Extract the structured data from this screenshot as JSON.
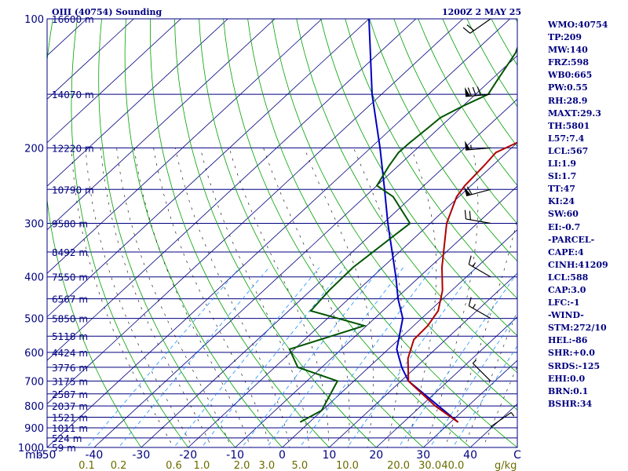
{
  "header": {
    "station": "OIII (40754) Sounding",
    "time": "1200Z  2 MAY 25"
  },
  "stats": [
    "WMO:40754",
    "TP:209",
    "MW:140",
    "FRZ:598",
    "WB0:665",
    "PW:0.55",
    "RH:28.9",
    "MAXT:29.3",
    "TH:5801",
    "L57:7.4",
    "LCL:567",
    "LI:1.9",
    "SI:1.7",
    "TT:47",
    "KI:24",
    "SW:60",
    "EI:-0.7",
    "-PARCEL-",
    "CAPE:4",
    "CINH:41209",
    "LCL:588",
    "CAP:3.0",
    "LFC:-1",
    "-WIND-",
    "STM:272/10",
    "HEL:-86",
    "SHR:+0.0",
    "SRDS:-125",
    "EHI:0.0",
    "BRN:0.1",
    "BSHR:34"
  ],
  "colors": {
    "frame": "#000080",
    "isobar": "#000080",
    "isotherm": "#000080",
    "dry_adiabat": "#00a000",
    "moist_adiabat": "#000000",
    "mixing_ratio": "#1e90ff",
    "temperature": "#b00000",
    "dewpoint": "#005500",
    "parcel": "#0000c0",
    "axis_text": "#000080",
    "mixing_text": "#6b6b00"
  },
  "chart_data": {
    "type": "skew-t log-p",
    "x_unit": "°C",
    "y_unit": "mb",
    "pressure_ticks": [
      100,
      200,
      300,
      400,
      500,
      600,
      700,
      800,
      900,
      1000
    ],
    "pressure_axis_label": "mb",
    "temperature_ticks": [
      -50,
      -40,
      -30,
      -20,
      -10,
      0,
      10,
      20,
      30,
      40,
      50
    ],
    "temperature_tick_labels": [
      "-50",
      "-40",
      "-30",
      "-20",
      "-10",
      "0",
      "10",
      "20",
      "30",
      "40",
      "C"
    ],
    "mixing_ratio_ticks": [
      0.1,
      0.2,
      0.6,
      1.0,
      2.0,
      3.0,
      5.0,
      10.0,
      20.0,
      30.0,
      40.0
    ],
    "mixing_ratio_tick_labels": [
      "0.1",
      "0.2",
      "0.6",
      "1.0",
      "2.0",
      "3.0",
      "5.0",
      "10.0",
      "20.0",
      "30.0",
      "40.0"
    ],
    "mixing_ratio_unit": "g/kg",
    "height_labels": [
      {
        "p": 100,
        "label": "16600 m"
      },
      {
        "p": 150,
        "label": "14070 m"
      },
      {
        "p": 200,
        "label": "12220 m"
      },
      {
        "p": 250,
        "label": "10790 m"
      },
      {
        "p": 300,
        "label": "9580 m"
      },
      {
        "p": 350,
        "label": "8492 m"
      },
      {
        "p": 400,
        "label": "7550 m"
      },
      {
        "p": 450,
        "label": "6567 m"
      },
      {
        "p": 500,
        "label": "5850 m"
      },
      {
        "p": 550,
        "label": "5118 m"
      },
      {
        "p": 600,
        "label": "4424 m"
      },
      {
        "p": 650,
        "label": "3776 m"
      },
      {
        "p": 700,
        "label": "3175 m"
      },
      {
        "p": 750,
        "label": "2587 m"
      },
      {
        "p": 800,
        "label": "2037 m"
      },
      {
        "p": 850,
        "label": "1521 m"
      },
      {
        "p": 900,
        "label": "1011 m"
      },
      {
        "p": 950,
        "label": "524 m"
      },
      {
        "p": 1000,
        "label": "59 m"
      }
    ],
    "temperature_profile": [
      [
        873,
        31.6
      ],
      [
        800,
        23.0
      ],
      [
        700,
        11.6
      ],
      [
        620,
        6.3
      ],
      [
        560,
        3.2
      ],
      [
        520,
        3.0
      ],
      [
        480,
        1.8
      ],
      [
        430,
        -2.0
      ],
      [
        380,
        -7.4
      ],
      [
        300,
        -16.5
      ],
      [
        260,
        -20.5
      ],
      [
        245,
        -21.3
      ],
      [
        220,
        -21.8
      ],
      [
        205,
        -22.3
      ],
      [
        195,
        -20.2
      ],
      [
        180,
        -16.6
      ],
      [
        172,
        -15.6
      ],
      [
        165,
        -14.6
      ],
      [
        160,
        -13.3
      ],
      [
        150,
        -13.4
      ],
      [
        140,
        -14.5
      ],
      [
        120,
        -17.0
      ],
      [
        110,
        -19.0
      ],
      [
        100,
        -21.3
      ]
    ],
    "dewpoint_profile": [
      [
        873,
        -2.0
      ],
      [
        820,
        -0.1
      ],
      [
        700,
        -3.5
      ],
      [
        650,
        -15.1
      ],
      [
        590,
        -21.0
      ],
      [
        520,
        -10.5
      ],
      [
        480,
        -25.3
      ],
      [
        430,
        -26.1
      ],
      [
        380,
        -26.3
      ],
      [
        300,
        -24.3
      ],
      [
        260,
        -34.0
      ],
      [
        245,
        -40.0
      ],
      [
        220,
        -42.0
      ],
      [
        205,
        -43.0
      ],
      [
        195,
        -42.9
      ],
      [
        180,
        -42.4
      ],
      [
        170,
        -42.1
      ],
      [
        160,
        -40.0
      ],
      [
        150,
        -37.3
      ],
      [
        140,
        -38.5
      ],
      [
        120,
        -41.0
      ],
      [
        110,
        -43.5
      ],
      [
        100,
        -47.0
      ]
    ],
    "parcel_profile": [
      [
        873,
        31.6
      ],
      [
        700,
        11.6
      ],
      [
        650,
        7.0
      ],
      [
        590,
        1.8
      ],
      [
        500,
        -4.0
      ],
      [
        450,
        -9.5
      ],
      [
        400,
        -15.0
      ],
      [
        300,
        -29.0
      ],
      [
        250,
        -37.5
      ],
      [
        200,
        -48.0
      ],
      [
        150,
        -62.0
      ],
      [
        100,
        -80.0
      ]
    ],
    "wind_barbs": [
      {
        "p": 895,
        "dir": 55,
        "speed": 5
      },
      {
        "p": 700,
        "dir": 315,
        "speed": 5
      },
      {
        "p": 500,
        "dir": 300,
        "speed": 15
      },
      {
        "p": 400,
        "dir": 300,
        "speed": 15
      },
      {
        "p": 300,
        "dir": 280,
        "speed": 20
      },
      {
        "p": 250,
        "dir": 255,
        "speed": 60
      },
      {
        "p": 200,
        "dir": 265,
        "speed": 55
      },
      {
        "p": 150,
        "dir": 265,
        "speed": 80
      },
      {
        "p": 100,
        "dir": 235,
        "speed": 20
      }
    ]
  }
}
